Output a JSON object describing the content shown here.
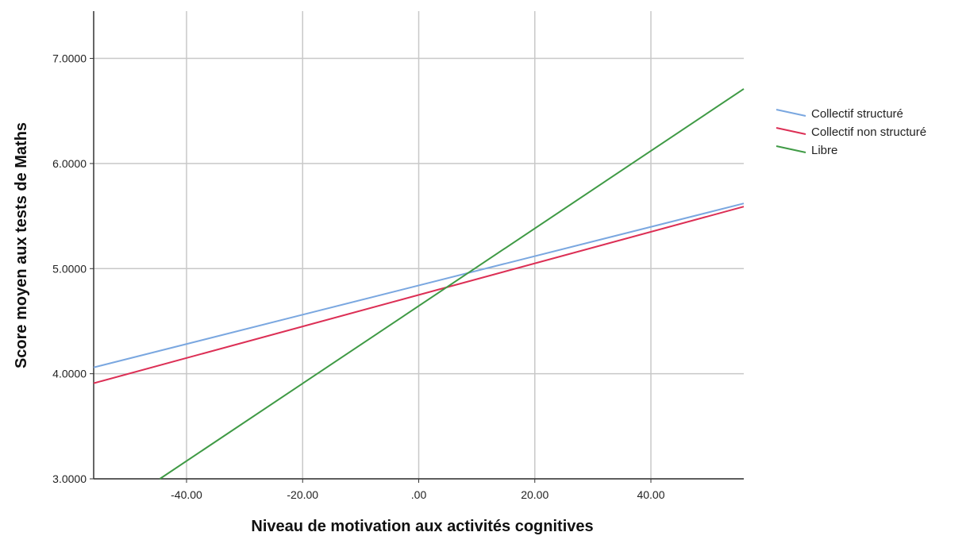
{
  "chart_data": {
    "type": "line",
    "title": "",
    "xlabel": "Niveau de motivation aux activités cognitives",
    "ylabel": "Score moyen aux tests de Maths",
    "xlim": [
      -56,
      56
    ],
    "ylim": [
      3.0,
      7.45
    ],
    "x_ticks": [
      -40,
      -20,
      0,
      20,
      40
    ],
    "x_tick_labels": [
      "-40.00",
      "-20.00",
      ".00",
      "20.00",
      "40.00"
    ],
    "y_ticks": [
      3,
      4,
      5,
      6,
      7
    ],
    "y_tick_labels": [
      "3.0000",
      "4.0000",
      "5.0000",
      "6.0000",
      "7.0000"
    ],
    "grid": true,
    "legend_position": "right",
    "series": [
      {
        "name": "Collectif structuré",
        "color": "#7aa7e0",
        "x": [
          -56,
          56
        ],
        "y": [
          4.06,
          5.62
        ]
      },
      {
        "name": "Collectif non structuré",
        "color": "#dc2f55",
        "x": [
          -56,
          56
        ],
        "y": [
          3.91,
          5.59
        ]
      },
      {
        "name": "Libre",
        "color": "#3f9a45",
        "x": [
          -44.6,
          56
        ],
        "y": [
          3.0,
          6.71
        ]
      }
    ]
  }
}
